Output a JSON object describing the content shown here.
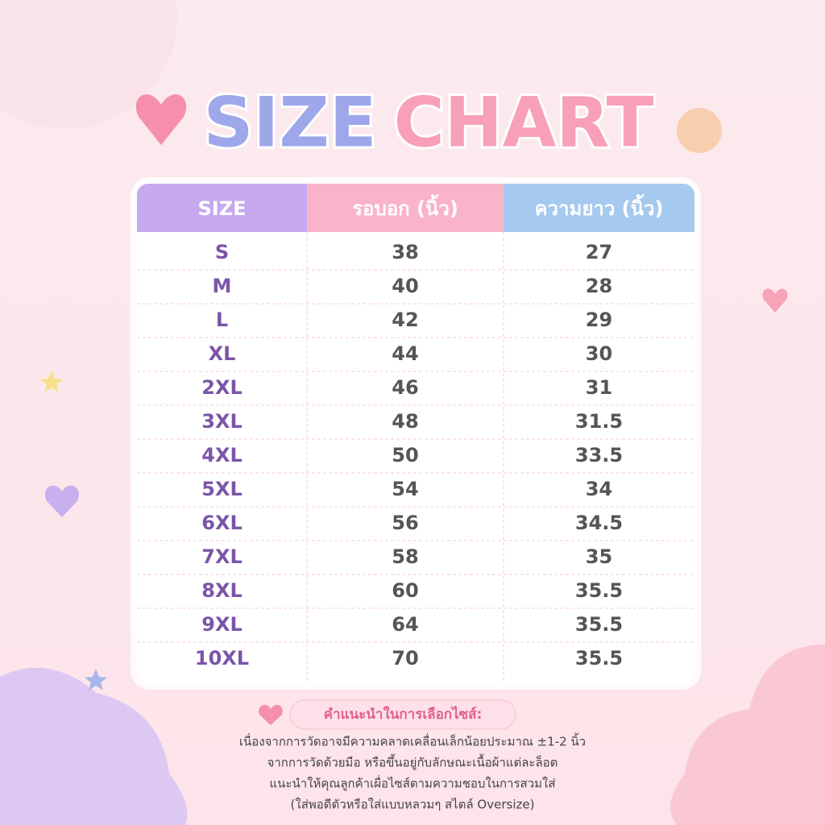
{
  "title": {
    "part1": "SIZE",
    "part2": "CHART"
  },
  "table": {
    "header": [
      "SIZE",
      "รอบอก (นิ้ว)",
      "ความยาว (นิ้ว)"
    ],
    "rows": [
      [
        "S",
        "38",
        "27"
      ],
      [
        "M",
        "40",
        "28"
      ],
      [
        "L",
        "42",
        "29"
      ],
      [
        "XL",
        "44",
        "30"
      ],
      [
        "2XL",
        "46",
        "31"
      ],
      [
        "3XL",
        "48",
        "31.5"
      ],
      [
        "4XL",
        "50",
        "33.5"
      ],
      [
        "5XL",
        "54",
        "34"
      ],
      [
        "6XL",
        "56",
        "34.5"
      ],
      [
        "7XL",
        "58",
        "35"
      ],
      [
        "8XL",
        "60",
        "35.5"
      ],
      [
        "9XL",
        "64",
        "35.5"
      ],
      [
        "10XL",
        "70",
        "35.5"
      ]
    ]
  },
  "note": {
    "title": "คำแนะนำในการเลือกไซส์:",
    "lines": [
      "เนื่องจากการวัดอาจมีความคลาดเคลื่อนเล็กน้อยประมาณ ±1-2 นิ้ว",
      "จากการวัดด้วยมือ หรือขึ้นอยู่กับลักษณะเนื้อผ้าแต่ละล็อต",
      "แนะนำให้คุณลูกค้าเผื่อไซส์ตามความชอบในการสวมใส่",
      "(ใส่พอดีตัวหรือใส่แบบหลวมๆ สไตล์ Oversize)"
    ]
  }
}
